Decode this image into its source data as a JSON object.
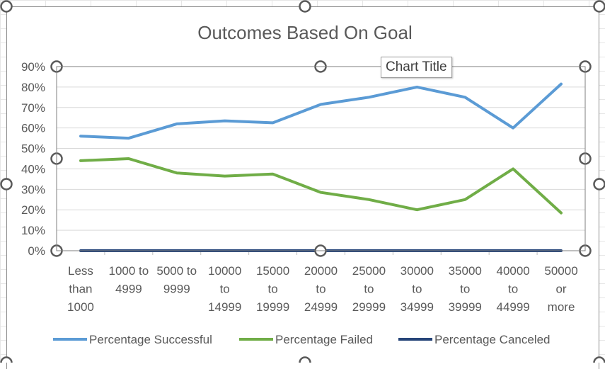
{
  "tooltip": "Chart Title",
  "chart_data": {
    "type": "line",
    "title": "Outcomes Based On Goal",
    "xlabel": "",
    "ylabel": "",
    "ylim": [
      0,
      0.9
    ],
    "yticks": [
      "0%",
      "10%",
      "20%",
      "30%",
      "40%",
      "50%",
      "60%",
      "70%",
      "80%",
      "90%"
    ],
    "categories": [
      [
        "Less",
        "than",
        "1000"
      ],
      [
        "1000 to",
        "4999"
      ],
      [
        "5000 to",
        "9999"
      ],
      [
        "10000",
        "to",
        "14999"
      ],
      [
        "15000",
        "to",
        "19999"
      ],
      [
        "20000",
        "to",
        "24999"
      ],
      [
        "25000",
        "to",
        "29999"
      ],
      [
        "30000",
        "to",
        "34999"
      ],
      [
        "35000",
        "to",
        "39999"
      ],
      [
        "40000",
        "to",
        "44999"
      ],
      [
        "50000",
        "or",
        "more"
      ]
    ],
    "series": [
      {
        "name": "Percentage Successful",
        "color": "#5b9bd5",
        "values": [
          0.56,
          0.55,
          0.62,
          0.635,
          0.625,
          0.715,
          0.75,
          0.8,
          0.75,
          0.6,
          0.815
        ]
      },
      {
        "name": "Percentage Failed",
        "color": "#70ad47",
        "values": [
          0.44,
          0.45,
          0.38,
          0.365,
          0.375,
          0.285,
          0.25,
          0.2,
          0.25,
          0.4,
          0.185
        ]
      },
      {
        "name": "Percentage Canceled",
        "color": "#264478",
        "values": [
          0,
          0,
          0,
          0,
          0,
          0,
          0,
          0,
          0,
          0,
          0
        ]
      }
    ],
    "grid": true,
    "legend": "bottom"
  }
}
